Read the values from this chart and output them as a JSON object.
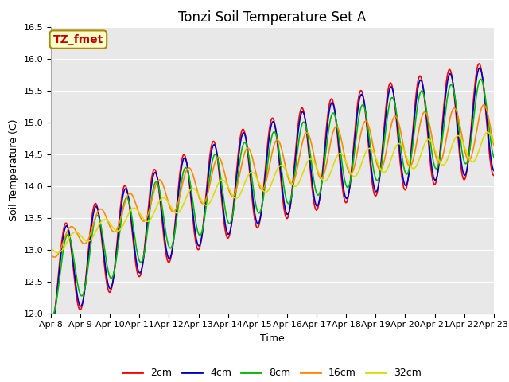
{
  "title": "Tonzi Soil Temperature Set A",
  "xlabel": "Time",
  "ylabel": "Soil Temperature (C)",
  "ylim": [
    12.0,
    16.5
  ],
  "annotation_text": "TZ_fmet",
  "annotation_color": "#cc0000",
  "annotation_bg": "#ffffcc",
  "annotation_border": "#aa8800",
  "series_colors": {
    "2cm": "#ff0000",
    "4cm": "#0000cc",
    "8cm": "#00bb00",
    "16cm": "#ff8800",
    "32cm": "#dddd00"
  },
  "legend_labels": [
    "2cm",
    "4cm",
    "8cm",
    "16cm",
    "32cm"
  ],
  "plot_bg_color": "#e8e8e8",
  "title_fontsize": 12,
  "axis_fontsize": 9,
  "tick_fontsize": 8
}
